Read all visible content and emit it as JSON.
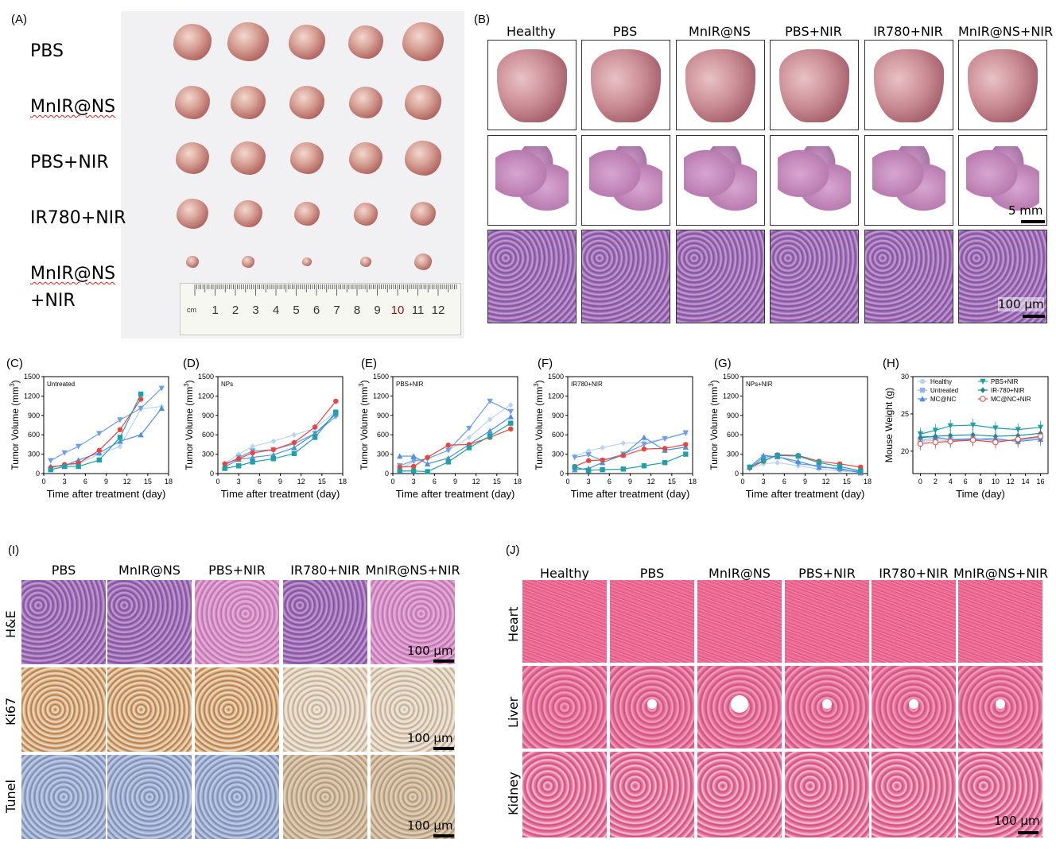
{
  "panelA": {
    "letter": "(A)",
    "groups": [
      "PBS",
      "MnIR@NS",
      "PBS+NIR",
      "IR780+NIR",
      "MnIR@NS",
      "+NIR"
    ],
    "ruler_unit": "cm",
    "ruler_ticks": [
      "1",
      "2",
      "3",
      "4",
      "5",
      "6",
      "7",
      "8",
      "9",
      "10",
      "11",
      "12"
    ]
  },
  "panelB": {
    "letter": "(B)",
    "groups": [
      "Healthy",
      "PBS",
      "MnIR@NS",
      "PBS+NIR",
      "IR780+NIR",
      "MnIR@NS+NIR"
    ],
    "scale_section": "5 mm",
    "scale_histo": "100 µm"
  },
  "growth_charts_common": {
    "ylabel": "Tumor Volume (mm",
    "ylabel_sup": "3",
    "ylabel_end": ")",
    "xlabel": "Time after treatment (day)",
    "yticks": [
      "0",
      "300",
      "600",
      "900",
      "1200",
      "1500"
    ],
    "xticks": [
      "0",
      "3",
      "6",
      "9",
      "12",
      "15",
      "18"
    ]
  },
  "chart_data": [
    {
      "panel": "(C)",
      "type": "line",
      "title": "Untreated",
      "xlim": [
        0,
        18
      ],
      "ylim": [
        0,
        1500
      ],
      "series": [
        {
          "color": "#b9d3f0",
          "marker": "diamond",
          "x": [
            1,
            3,
            5,
            8,
            11,
            14,
            17
          ],
          "y": [
            100,
            130,
            150,
            300,
            420,
            1000,
            1040
          ]
        },
        {
          "color": "#6f9fe6",
          "marker": "triangle-down",
          "x": [
            1,
            3,
            5,
            8,
            11,
            14,
            17
          ],
          "y": [
            200,
            320,
            420,
            620,
            830,
            1010,
            1320
          ]
        },
        {
          "color": "#4e8fe0",
          "marker": "triangle",
          "x": [
            1,
            3,
            5,
            8,
            11,
            14,
            17
          ],
          "y": [
            110,
            120,
            210,
            320,
            500,
            600,
            1010
          ]
        },
        {
          "color": "#e8453c",
          "marker": "circle",
          "x": [
            1,
            3,
            5,
            8,
            11,
            14
          ],
          "y": [
            90,
            140,
            160,
            360,
            680,
            1150
          ]
        },
        {
          "color": "#1f9fa8",
          "marker": "square",
          "x": [
            1,
            3,
            5,
            8,
            11,
            14
          ],
          "y": [
            60,
            110,
            110,
            210,
            560,
            1230
          ]
        }
      ]
    },
    {
      "panel": "(D)",
      "type": "line",
      "title": "NPs",
      "xlim": [
        0,
        18
      ],
      "ylim": [
        0,
        1500
      ],
      "series": [
        {
          "color": "#b9d3f0",
          "marker": "diamond",
          "x": [
            1,
            3,
            5,
            8,
            11,
            14,
            17
          ],
          "y": [
            160,
            300,
            420,
            500,
            600,
            700,
            960
          ]
        },
        {
          "color": "#6f9fe6",
          "marker": "triangle-down",
          "x": [
            1,
            3,
            5,
            8,
            11,
            14,
            17
          ],
          "y": [
            130,
            250,
            350,
            370,
            460,
            620,
            880
          ]
        },
        {
          "color": "#4e8fe0",
          "marker": "triangle",
          "x": [
            1,
            3,
            5,
            8,
            11,
            14,
            17
          ],
          "y": [
            100,
            220,
            250,
            290,
            400,
            620,
            920
          ]
        },
        {
          "color": "#e8453c",
          "marker": "circle",
          "x": [
            1,
            3,
            5,
            8,
            11,
            14,
            17
          ],
          "y": [
            150,
            230,
            320,
            370,
            480,
            720,
            1120
          ]
        },
        {
          "color": "#1f9fa8",
          "marker": "square",
          "x": [
            1,
            3,
            5,
            8,
            11,
            14,
            17
          ],
          "y": [
            80,
            120,
            180,
            230,
            310,
            560,
            950
          ]
        }
      ]
    },
    {
      "panel": "(E)",
      "type": "line",
      "title": "PBS+NIR",
      "xlim": [
        0,
        18
      ],
      "ylim": [
        0,
        1500
      ],
      "series": [
        {
          "color": "#b9d3f0",
          "marker": "diamond",
          "x": [
            1,
            3,
            5,
            8,
            11,
            14,
            17
          ],
          "y": [
            80,
            180,
            230,
            360,
            560,
            840,
            1060
          ]
        },
        {
          "color": "#6f9fe6",
          "marker": "triangle-down",
          "x": [
            1,
            3,
            5,
            8,
            11,
            14,
            17
          ],
          "y": [
            120,
            200,
            230,
            360,
            700,
            1120,
            960
          ]
        },
        {
          "color": "#4e8fe0",
          "marker": "triangle",
          "x": [
            1,
            3,
            5,
            8,
            11,
            14,
            17
          ],
          "y": [
            270,
            270,
            150,
            240,
            450,
            660,
            880
          ]
        },
        {
          "color": "#e8453c",
          "marker": "circle",
          "x": [
            1,
            3,
            5,
            8,
            11,
            14,
            17
          ],
          "y": [
            100,
            110,
            250,
            440,
            450,
            560,
            690
          ]
        },
        {
          "color": "#1f9fa8",
          "marker": "square",
          "x": [
            1,
            3,
            5,
            8,
            11,
            14,
            17
          ],
          "y": [
            40,
            40,
            30,
            180,
            400,
            580,
            780
          ]
        }
      ]
    },
    {
      "panel": "(F)",
      "type": "line",
      "title": "IR780+NIR",
      "xlim": [
        0,
        18
      ],
      "ylim": [
        0,
        1500
      ],
      "series": [
        {
          "color": "#b9d3f0",
          "marker": "diamond",
          "x": [
            1,
            3,
            5,
            8,
            11,
            14,
            17
          ],
          "y": [
            270,
            350,
            400,
            470,
            480,
            540,
            620
          ]
        },
        {
          "color": "#6f9fe6",
          "marker": "triangle-down",
          "x": [
            1,
            3,
            5,
            8,
            11,
            14,
            17
          ],
          "y": [
            250,
            290,
            200,
            300,
            450,
            540,
            630
          ]
        },
        {
          "color": "#4e8fe0",
          "marker": "triangle",
          "x": [
            1,
            3,
            5,
            8,
            11,
            14,
            17
          ],
          "y": [
            60,
            80,
            170,
            290,
            560,
            360,
            410
          ]
        },
        {
          "color": "#e8453c",
          "marker": "circle",
          "x": [
            1,
            3,
            5,
            8,
            11,
            14,
            17
          ],
          "y": [
            110,
            200,
            210,
            280,
            380,
            390,
            450
          ]
        },
        {
          "color": "#1f9fa8",
          "marker": "square",
          "x": [
            1,
            3,
            5,
            8,
            11,
            14,
            17
          ],
          "y": [
            100,
            50,
            60,
            70,
            120,
            170,
            300
          ]
        }
      ]
    },
    {
      "panel": "(G)",
      "type": "line",
      "title": "NPs+NIR",
      "xlim": [
        0,
        18
      ],
      "ylim": [
        0,
        1500
      ],
      "series": [
        {
          "color": "#b9d3f0",
          "marker": "diamond",
          "x": [
            1,
            3,
            5,
            8,
            11,
            14,
            17
          ],
          "y": [
            80,
            150,
            170,
            120,
            70,
            40,
            20
          ]
        },
        {
          "color": "#6f9fe6",
          "marker": "triangle-down",
          "x": [
            1,
            3,
            5,
            8,
            11,
            14,
            17
          ],
          "y": [
            80,
            250,
            270,
            150,
            120,
            60,
            30
          ]
        },
        {
          "color": "#4e8fe0",
          "marker": "triangle",
          "x": [
            1,
            3,
            5,
            8,
            11,
            14,
            17
          ],
          "y": [
            100,
            280,
            260,
            190,
            100,
            80,
            10
          ]
        },
        {
          "color": "#e8453c",
          "marker": "circle",
          "x": [
            1,
            3,
            5,
            8,
            11,
            14,
            17
          ],
          "y": [
            90,
            190,
            290,
            280,
            190,
            150,
            100
          ]
        },
        {
          "color": "#1f9fa8",
          "marker": "square",
          "x": [
            1,
            3,
            5,
            8,
            11,
            14,
            17
          ],
          "y": [
            100,
            200,
            280,
            270,
            170,
            110,
            40
          ]
        }
      ]
    },
    {
      "panel": "(H)",
      "type": "line",
      "xlabel": "Time (day)",
      "ylabel": "Mouse Weight (g)",
      "xlim": [
        -1,
        17
      ],
      "ylim": [
        17,
        30
      ],
      "xticks": [
        "0",
        "2",
        "4",
        "6",
        "8",
        "10",
        "12",
        "14",
        "16"
      ],
      "yticks": [
        "20",
        "25",
        "30"
      ],
      "legend_position": "top",
      "series": [
        {
          "name": "Healthy",
          "color": "#b9d3f0",
          "marker": "circle",
          "x": [
            0,
            2,
            4,
            7,
            10,
            13,
            16
          ],
          "y": [
            21.3,
            21.5,
            21.4,
            21.6,
            21.5,
            21.4,
            21.8
          ]
        },
        {
          "name": "Untreated",
          "color": "#8fb4e8",
          "marker": "square",
          "x": [
            0,
            2,
            4,
            7,
            10,
            13,
            16
          ],
          "y": [
            21.4,
            21.8,
            21.6,
            21.7,
            21.4,
            21.5,
            21.9
          ]
        },
        {
          "name": "MC@NC",
          "color": "#4e8fe0",
          "marker": "triangle",
          "x": [
            0,
            2,
            4,
            7,
            10,
            13,
            16
          ],
          "y": [
            22.0,
            21.9,
            21.5,
            21.6,
            21.7,
            21.3,
            21.6
          ]
        },
        {
          "name": "PBS+NIR",
          "color": "#1f9fa8",
          "marker": "triangle-down",
          "x": [
            0,
            2,
            4,
            7,
            10,
            13,
            16
          ],
          "y": [
            22.3,
            22.8,
            23.4,
            23.5,
            23.1,
            22.9,
            23.2
          ]
        },
        {
          "name": "IR-780+NIR",
          "color": "#1b8a8f",
          "marker": "diamond",
          "x": [
            0,
            2,
            4,
            7,
            10,
            13,
            16
          ],
          "y": [
            21.8,
            22.0,
            22.1,
            22.2,
            22.0,
            22.1,
            22.4
          ]
        },
        {
          "name": "MC@NC+NIR",
          "color": "#e8453c",
          "marker": "circle-open",
          "x": [
            0,
            2,
            4,
            7,
            10,
            13,
            16
          ],
          "y": [
            21.0,
            21.2,
            21.3,
            21.5,
            21.2,
            21.6,
            22.0
          ]
        }
      ]
    }
  ],
  "panelI": {
    "letter": "(I)",
    "groups": [
      "PBS",
      "MnIR@NS",
      "PBS+NIR",
      "IR780+NIR",
      "MnIR@NS+NIR"
    ],
    "rows": [
      "H&E",
      "Ki67",
      "Tunel"
    ],
    "scale": "100 µm"
  },
  "panelJ": {
    "letter": "(J)",
    "groups": [
      "Healthy",
      "PBS",
      "MnIR@NS",
      "PBS+NIR",
      "IR780+NIR",
      "MnIR@NS+NIR"
    ],
    "rows": [
      "Heart",
      "Liver",
      "Kidney"
    ],
    "scale": "100 µm"
  }
}
